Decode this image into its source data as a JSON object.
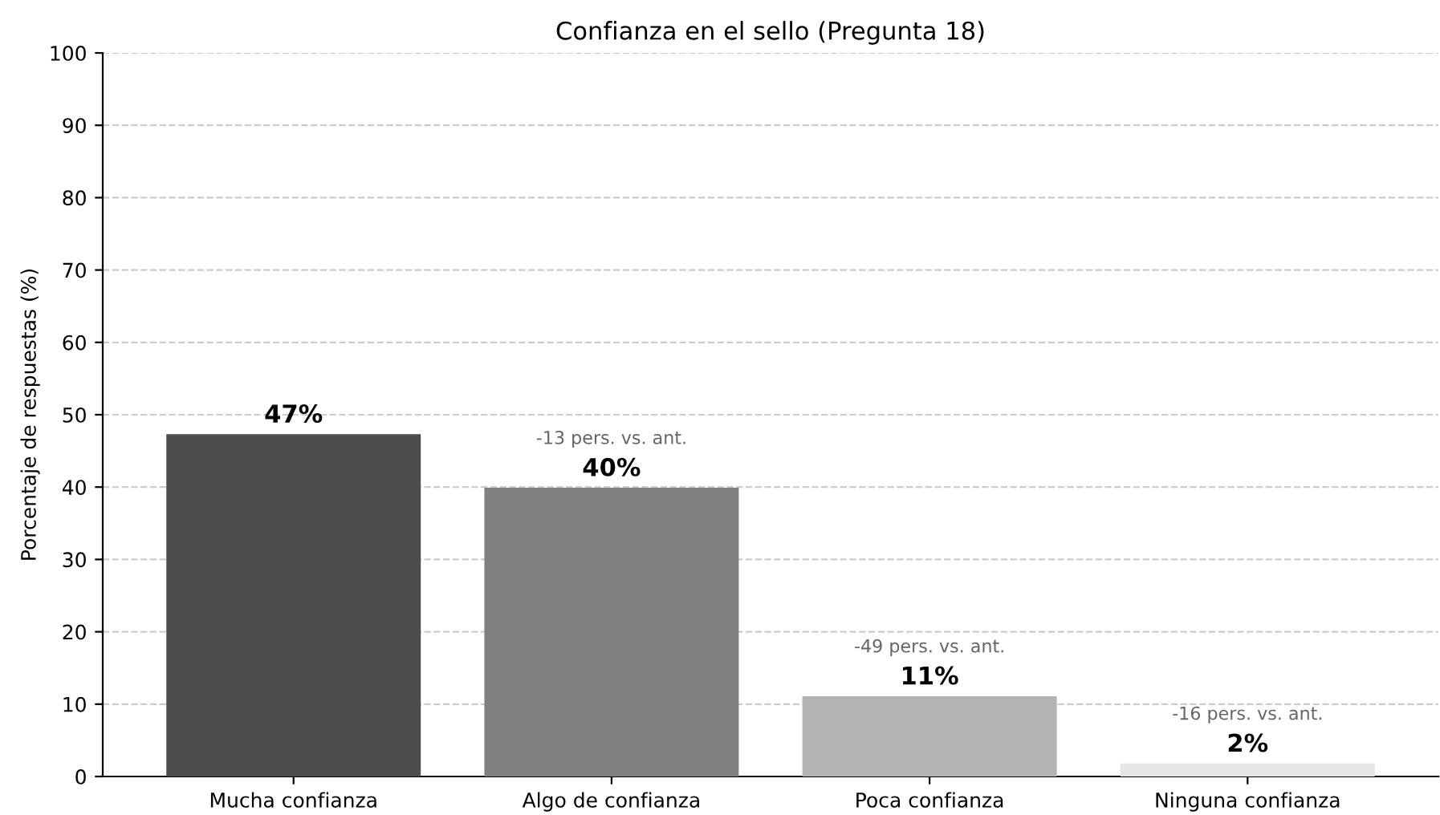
{
  "chart_data": {
    "type": "bar",
    "title": "Confianza en el sello (Pregunta 18)",
    "ylabel": "Porcentaje de respuestas (%)",
    "categories": [
      "Mucha confianza",
      "Algo de confianza",
      "Poca confianza",
      "Ninguna confianza"
    ],
    "values": [
      47.3,
      39.9,
      11.1,
      1.8
    ],
    "colors": [
      "#4d4d4d",
      "#808080",
      "#b3b3b3",
      "#e6e6e6"
    ],
    "value_labels": [
      "47%",
      "40%",
      "11%",
      "2%"
    ],
    "annotations": [
      {
        "text": "-13 pers. vs. ant.",
        "x": "Algo de confianza",
        "y": 39.9
      },
      {
        "text": "-49 pers. vs. ant.",
        "x": "Poca confianza",
        "y": 11.1
      },
      {
        "text": "-16 pers. vs. ant.",
        "x": "Ninguna confianza",
        "y": 1.8
      }
    ],
    "ylim": [
      0,
      100
    ],
    "yticks": [
      0,
      10,
      20,
      30,
      40,
      50,
      60,
      70,
      80,
      90,
      100
    ],
    "grid": "y"
  }
}
